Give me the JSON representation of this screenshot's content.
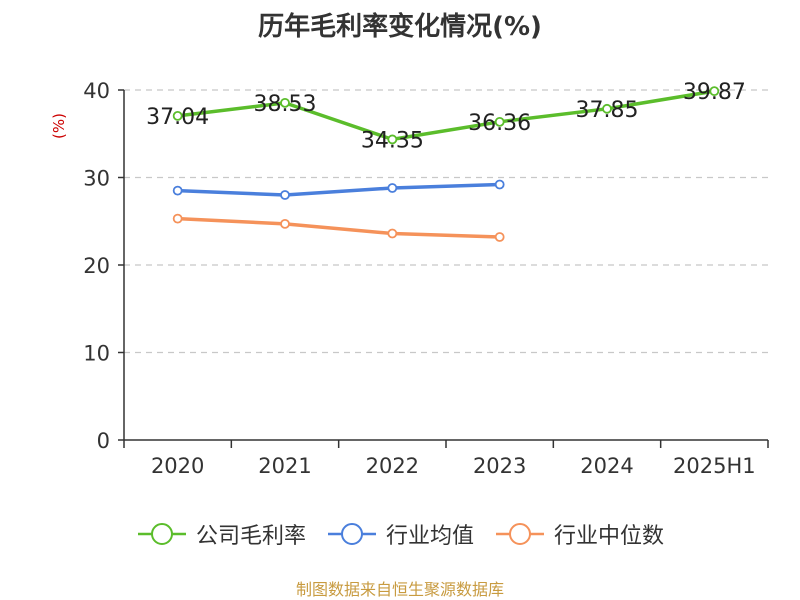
{
  "title": "历年毛利率变化情况(%)",
  "source": "制图数据来自恒生聚源数据库",
  "chart_data": {
    "type": "line",
    "title": "历年毛利率变化情况(%)",
    "ylabel": "(%)",
    "categories": [
      "2020",
      "2021",
      "2022",
      "2023",
      "2024",
      "2025H1"
    ],
    "yticks": [
      "0",
      "10",
      "20",
      "30",
      "40"
    ],
    "ylim": [
      0,
      40
    ],
    "grid": true,
    "legend_position": "bottom",
    "series": [
      {
        "name": "公司毛利率",
        "color": "#5bbd2b",
        "values": [
          37.04,
          38.53,
          34.35,
          36.36,
          37.85,
          39.87
        ],
        "labels": [
          "37.04",
          "38.53",
          "34.35",
          "36.36",
          "37.85",
          "39.87"
        ]
      },
      {
        "name": "行业均值",
        "color": "#4a7fdc",
        "values": [
          28.5,
          28.0,
          28.8,
          29.2,
          null,
          null
        ]
      },
      {
        "name": "行业中位数",
        "color": "#f5925a",
        "values": [
          25.3,
          24.7,
          23.6,
          23.2,
          null,
          null
        ]
      }
    ]
  }
}
